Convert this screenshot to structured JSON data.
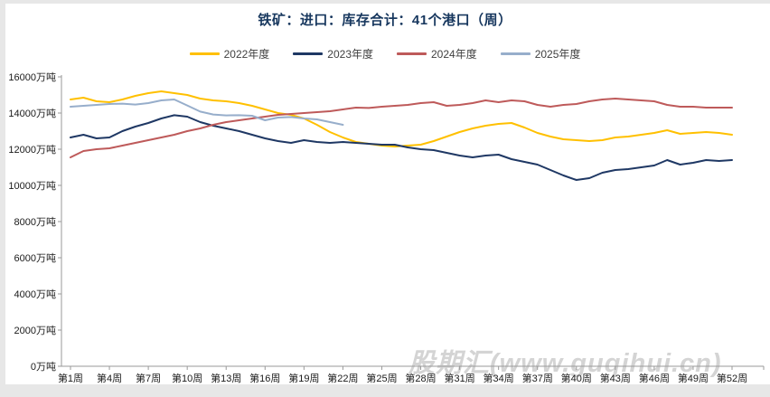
{
  "title": {
    "text": "铁矿：进口：库存合计：41个港口（周）",
    "color": "#17375e"
  },
  "watermark": {
    "text": "股期汇(www.guqihui.cn)"
  },
  "page": {
    "background": "#e7e7e7",
    "card_background": "#ffffff",
    "axis_color": "#9a9a9a"
  },
  "chart_data": {
    "type": "line",
    "title": "铁矿：进口：库存合计：41个港口（周）",
    "xlabel": "",
    "ylabel": "",
    "y_unit": "万吨",
    "ylim": [
      0,
      16000
    ],
    "y_ticks": [
      0,
      2000,
      4000,
      6000,
      8000,
      10000,
      12000,
      14000,
      16000
    ],
    "x_range_weeks": [
      1,
      52
    ],
    "grid": false,
    "legend_position": "top-center",
    "x_tick_labels": [
      {
        "week": 1,
        "label": "第1周"
      },
      {
        "week": 4,
        "label": "第4周"
      },
      {
        "week": 7,
        "label": "第7周"
      },
      {
        "week": 10,
        "label": "第10周"
      },
      {
        "week": 13,
        "label": "第13周"
      },
      {
        "week": 16,
        "label": "第16周"
      },
      {
        "week": 19,
        "label": "第19周"
      },
      {
        "week": 22,
        "label": "第22周"
      },
      {
        "week": 25,
        "label": "第25周"
      },
      {
        "week": 28,
        "label": "第28周"
      },
      {
        "week": 31,
        "label": "第31周"
      },
      {
        "week": 34,
        "label": "第34周"
      },
      {
        "week": 37,
        "label": "第37周"
      },
      {
        "week": 40,
        "label": "第40周"
      },
      {
        "week": 43,
        "label": "第43周"
      },
      {
        "week": 46,
        "label": "第46周"
      },
      {
        "week": 49,
        "label": "第49周"
      },
      {
        "week": 52,
        "label": "第52周"
      }
    ],
    "series": [
      {
        "name": "2022年度",
        "color": "#FFC000",
        "start_week": 1,
        "values": [
          14750,
          14850,
          14650,
          14600,
          14750,
          14950,
          15100,
          15200,
          15100,
          15000,
          14800,
          14700,
          14650,
          14550,
          14400,
          14200,
          14000,
          13900,
          13700,
          13350,
          12950,
          12650,
          12400,
          12300,
          12200,
          12150,
          12200,
          12250,
          12450,
          12700,
          12950,
          13150,
          13300,
          13400,
          13450,
          13200,
          12900,
          12700,
          12550,
          12500,
          12450,
          12500,
          12650,
          12700,
          12800,
          12900,
          13050,
          12850,
          12900,
          12950,
          12900,
          12800
        ]
      },
      {
        "name": "2023年度",
        "color": "#1F3864",
        "start_week": 1,
        "values": [
          12650,
          12800,
          12600,
          12650,
          13000,
          13250,
          13450,
          13700,
          13880,
          13800,
          13500,
          13300,
          13150,
          13000,
          12800,
          12600,
          12450,
          12350,
          12500,
          12400,
          12350,
          12400,
          12350,
          12300,
          12250,
          12250,
          12100,
          12000,
          11950,
          11800,
          11650,
          11550,
          11650,
          11700,
          11450,
          11300,
          11150,
          10850,
          10550,
          10300,
          10400,
          10700,
          10850,
          10900,
          11000,
          11100,
          11400,
          11150,
          11250,
          11400,
          11350,
          11400
        ]
      },
      {
        "name": "2024年度",
        "color": "#BE5A5A",
        "start_week": 1,
        "values": [
          11550,
          11900,
          12000,
          12050,
          12200,
          12350,
          12500,
          12650,
          12800,
          13000,
          13150,
          13350,
          13500,
          13600,
          13700,
          13800,
          13900,
          13950,
          14000,
          14050,
          14100,
          14200,
          14300,
          14280,
          14350,
          14400,
          14450,
          14550,
          14600,
          14400,
          14450,
          14550,
          14700,
          14600,
          14700,
          14650,
          14450,
          14350,
          14450,
          14500,
          14650,
          14750,
          14800,
          14750,
          14700,
          14650,
          14450,
          14350,
          14350,
          14300,
          14300,
          14300
        ]
      },
      {
        "name": "2025年度",
        "color": "#97AECB",
        "start_week": 1,
        "values": [
          14350,
          14400,
          14450,
          14500,
          14520,
          14470,
          14550,
          14700,
          14750,
          14420,
          14080,
          13920,
          13870,
          13880,
          13850,
          13600,
          13750,
          13780,
          13700,
          13650,
          13500,
          13350
        ]
      }
    ]
  }
}
